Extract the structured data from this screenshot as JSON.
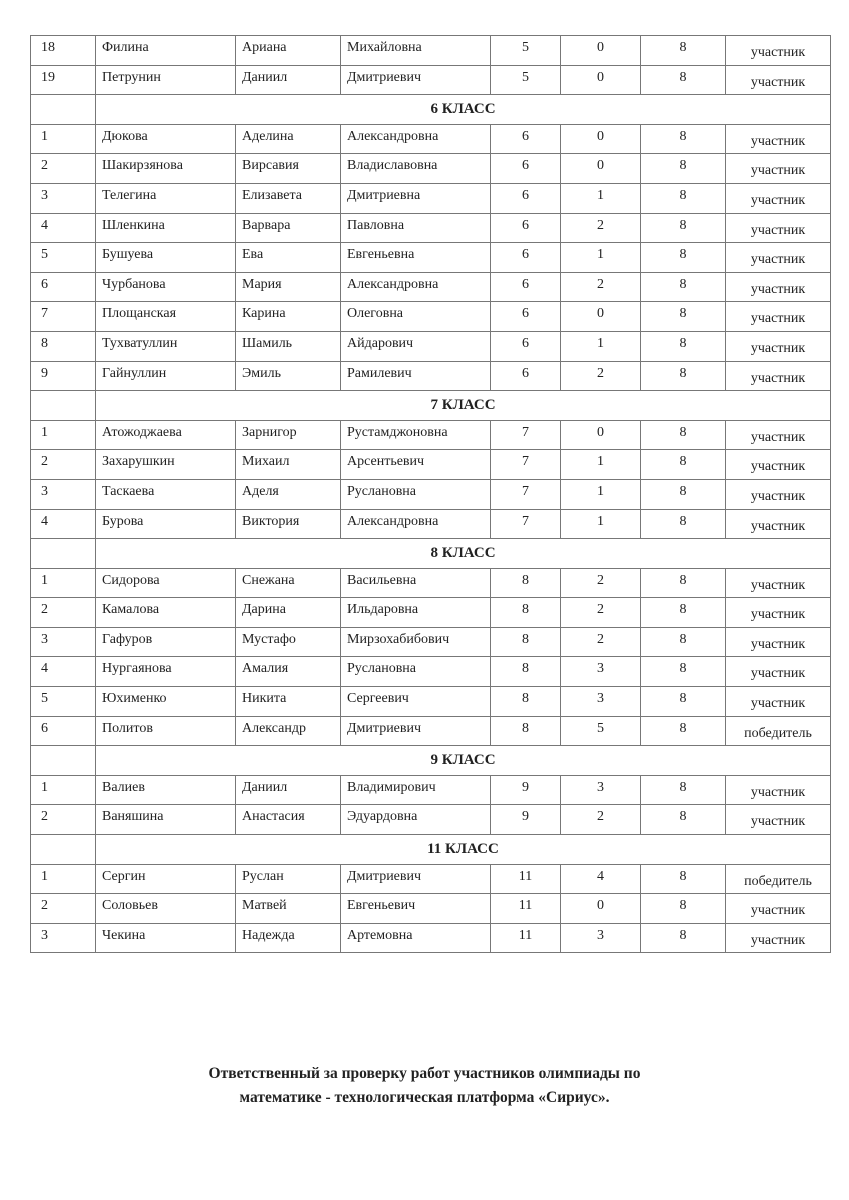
{
  "sections": [
    {
      "title": "",
      "rows": [
        {
          "n": "18",
          "surname": "Филина",
          "name": "Ариана",
          "patronymic": "Михайловна",
          "grade": "5",
          "score": "0",
          "max": "8",
          "status": "участник"
        },
        {
          "n": "19",
          "surname": "Петрунин",
          "name": "Даниил",
          "patronymic": "Дмитриевич",
          "grade": "5",
          "score": "0",
          "max": "8",
          "status": "участник"
        }
      ]
    },
    {
      "title": "6 КЛАСС",
      "rows": [
        {
          "n": "1",
          "surname": "Дюкова",
          "name": "Аделина",
          "patronymic": "Александровна",
          "grade": "6",
          "score": "0",
          "max": "8",
          "status": "участник"
        },
        {
          "n": "2",
          "surname": "Шакирзянова",
          "name": "Вирсавия",
          "patronymic": "Владиславовна",
          "grade": "6",
          "score": "0",
          "max": "8",
          "status": "участник"
        },
        {
          "n": "3",
          "surname": "Телегина",
          "name": "Елизавета",
          "patronymic": "Дмитриевна",
          "grade": "6",
          "score": "1",
          "max": "8",
          "status": "участник"
        },
        {
          "n": "4",
          "surname": "Шленкина",
          "name": "Варвара",
          "patronymic": "Павловна",
          "grade": "6",
          "score": "2",
          "max": "8",
          "status": "участник"
        },
        {
          "n": "5",
          "surname": "Бушуева",
          "name": "Ева",
          "patronymic": "Евгеньевна",
          "grade": "6",
          "score": "1",
          "max": "8",
          "status": "участник"
        },
        {
          "n": "6",
          "surname": "Чурбанова",
          "name": "Мария",
          "patronymic": "Александровна",
          "grade": "6",
          "score": "2",
          "max": "8",
          "status": "участник"
        },
        {
          "n": "7",
          "surname": "Площанская",
          "name": "Карина",
          "patronymic": "Олеговна",
          "grade": "6",
          "score": "0",
          "max": "8",
          "status": "участник"
        },
        {
          "n": "8",
          "surname": "Тухватуллин",
          "name": "Шамиль",
          "patronymic": "Айдарович",
          "grade": "6",
          "score": "1",
          "max": "8",
          "status": "участник"
        },
        {
          "n": "9",
          "surname": "Гайнуллин",
          "name": "Эмиль",
          "patronymic": "Рамилевич",
          "grade": "6",
          "score": "2",
          "max": "8",
          "status": "участник"
        }
      ]
    },
    {
      "title": "7 КЛАСС",
      "rows": [
        {
          "n": "1",
          "surname": "Атожоджаева",
          "name": "Зарнигор",
          "patronymic": "Рустамджоновна",
          "grade": "7",
          "score": "0",
          "max": "8",
          "status": "участник"
        },
        {
          "n": "2",
          "surname": "Захарушкин",
          "name": "Михаил",
          "patronymic": "Арсентьевич",
          "grade": "7",
          "score": "1",
          "max": "8",
          "status": "участник"
        },
        {
          "n": "3",
          "surname": "Таскаева",
          "name": "Аделя",
          "patronymic": "Руслановна",
          "grade": "7",
          "score": "1",
          "max": "8",
          "status": "участник"
        },
        {
          "n": "4",
          "surname": "Бурова",
          "name": "Виктория",
          "patronymic": "Александровна",
          "grade": "7",
          "score": "1",
          "max": "8",
          "status": "участник"
        }
      ]
    },
    {
      "title": "8 КЛАСС",
      "rows": [
        {
          "n": "1",
          "surname": "Сидорова",
          "name": "Снежана",
          "patronymic": "Васильевна",
          "grade": "8",
          "score": "2",
          "max": "8",
          "status": "участник"
        },
        {
          "n": "2",
          "surname": "Камалова",
          "name": "Дарина",
          "patronymic": "Ильдаровна",
          "grade": "8",
          "score": "2",
          "max": "8",
          "status": "участник"
        },
        {
          "n": "3",
          "surname": "Гафуров",
          "name": "Мустафо",
          "patronymic": "Мирзохабибович",
          "grade": "8",
          "score": "2",
          "max": "8",
          "status": "участник"
        },
        {
          "n": "4",
          "surname": "Нургаянова",
          "name": "Амалия",
          "patronymic": "Руслановна",
          "grade": "8",
          "score": "3",
          "max": "8",
          "status": "участник"
        },
        {
          "n": "5",
          "surname": "Юхименко",
          "name": "Никита",
          "patronymic": "Сергеевич",
          "grade": "8",
          "score": "3",
          "max": "8",
          "status": "участник"
        },
        {
          "n": "6",
          "surname": "Политов",
          "name": "Александр",
          "patronymic": "Дмитриевич",
          "grade": "8",
          "score": "5",
          "max": "8",
          "status": "победитель"
        }
      ]
    },
    {
      "title": "9 КЛАСС",
      "rows": [
        {
          "n": "1",
          "surname": "Валиев",
          "name": "Даниил",
          "patronymic": "Владимирович",
          "grade": "9",
          "score": "3",
          "max": "8",
          "status": "участник"
        },
        {
          "n": "2",
          "surname": "Ваняшина",
          "name": "Анастасия",
          "patronymic": "Эдуардовна",
          "grade": "9",
          "score": "2",
          "max": "8",
          "status": "участник"
        }
      ]
    },
    {
      "title": "11 КЛАСС",
      "rows": [
        {
          "n": "1",
          "surname": "Сергин",
          "name": "Руслан",
          "patronymic": "Дмитриевич",
          "grade": "11",
          "score": "4",
          "max": "8",
          "status": "победитель"
        },
        {
          "n": "2",
          "surname": "Соловьев",
          "name": "Матвей",
          "patronymic": "Евгеньевич",
          "grade": "11",
          "score": "0",
          "max": "8",
          "status": "участник"
        },
        {
          "n": "3",
          "surname": "Чекина",
          "name": "Надежда",
          "patronymic": "Артемовна",
          "grade": "11",
          "score": "3",
          "max": "8",
          "status": "участник"
        }
      ]
    }
  ],
  "footer": {
    "line1": "Ответственный за проверку работ участников олимпиады по",
    "line2": "математике - технологическая платформа «Сириус»."
  }
}
